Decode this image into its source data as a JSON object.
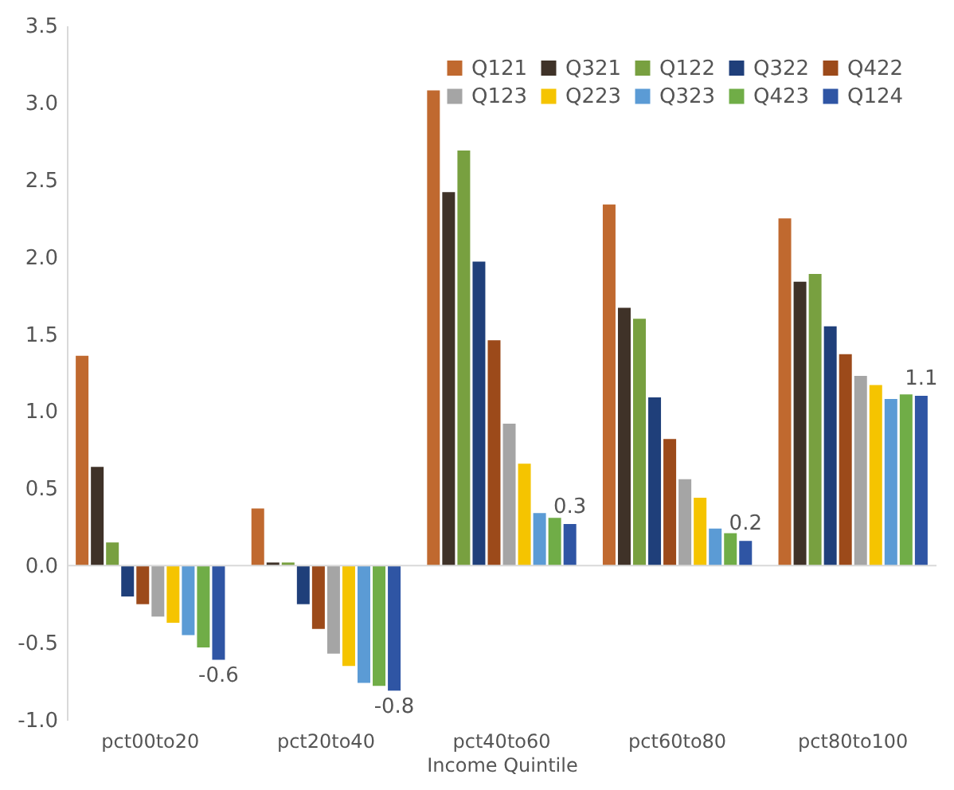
{
  "chart_data": {
    "type": "bar",
    "xlabel": "Income Quintile",
    "categories": [
      "pct00to20",
      "pct20to40",
      "pct40to60",
      "pct60to80",
      "pct80to100"
    ],
    "series": [
      {
        "name": "Q121",
        "color": "#c0692f",
        "values": [
          1.36,
          0.37,
          3.08,
          2.34,
          2.25
        ]
      },
      {
        "name": "Q321",
        "color": "#3f3228",
        "values": [
          0.64,
          0.02,
          2.42,
          1.67,
          1.84
        ]
      },
      {
        "name": "Q122",
        "color": "#78a040",
        "values": [
          0.15,
          0.02,
          2.69,
          1.6,
          1.89
        ]
      },
      {
        "name": "Q322",
        "color": "#1f3f7a",
        "values": [
          -0.2,
          -0.25,
          1.97,
          1.09,
          1.55
        ]
      },
      {
        "name": "Q422",
        "color": "#9c4a1a",
        "values": [
          -0.25,
          -0.41,
          1.46,
          0.82,
          1.37
        ]
      },
      {
        "name": "Q123",
        "color": "#a5a5a5",
        "values": [
          -0.33,
          -0.57,
          0.92,
          0.56,
          1.23
        ]
      },
      {
        "name": "Q223",
        "color": "#f5c400",
        "values": [
          -0.37,
          -0.65,
          0.66,
          0.44,
          1.17
        ]
      },
      {
        "name": "Q323",
        "color": "#5b9bd5",
        "values": [
          -0.45,
          -0.76,
          0.34,
          0.24,
          1.08
        ]
      },
      {
        "name": "Q423",
        "color": "#70ad47",
        "values": [
          -0.53,
          -0.78,
          0.31,
          0.21,
          1.11
        ]
      },
      {
        "name": "Q124",
        "color": "#2f55a4",
        "values": [
          -0.61,
          -0.81,
          0.27,
          0.16,
          1.1
        ],
        "value_labels": [
          "-0.6",
          "-0.8",
          "0.3",
          "0.2",
          "1.1"
        ]
      }
    ],
    "ylim": [
      -1.0,
      3.5
    ],
    "yticks": [
      {
        "value": -1.0,
        "label": "-1.0"
      },
      {
        "value": -0.5,
        "label": "-0.5"
      },
      {
        "value": 0.0,
        "label": "0.0"
      },
      0.5,
      {
        "value": 1.0,
        "label": "1.0"
      },
      1.5,
      {
        "value": 2.0,
        "label": "2.0"
      },
      2.5,
      {
        "value": 3.0,
        "label": "3.0"
      },
      3.5
    ],
    "ref_lines": [
      {
        "axis": "y",
        "value": 0,
        "color": "#d9d9d9"
      }
    ],
    "grid": false,
    "legend": "top right"
  }
}
